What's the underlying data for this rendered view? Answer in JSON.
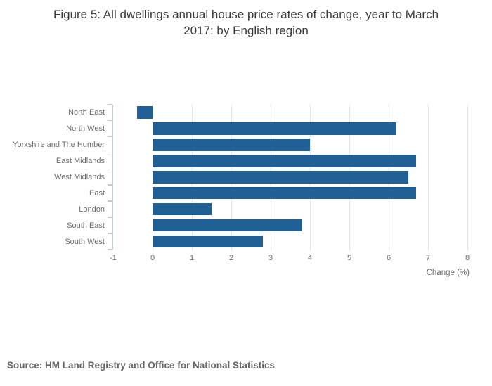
{
  "title": "Figure 5: All dwellings annual house price rates of change, year to March\n2017: by English region",
  "source": "Source: HM Land Registry and Office for National Statistics",
  "colors": {
    "bar": "#206095",
    "gridline": "#e4e4e4",
    "axis_line": "#c3cde2",
    "tick_text": "#6b6b6b",
    "title_text": "#3a3a3a",
    "source_text": "#666666",
    "background": "#ffffff"
  },
  "chart_data": {
    "type": "bar",
    "orientation": "horizontal",
    "title": "Figure 5: All dwellings annual house price rates of change, year to March 2017: by English region",
    "categories": [
      "North East",
      "North West",
      "Yorkshire and The Humber",
      "East Midlands",
      "West Midlands",
      "East",
      "London",
      "South East",
      "South West"
    ],
    "values": [
      -0.4,
      6.2,
      4.0,
      6.7,
      6.5,
      6.7,
      1.5,
      3.8,
      2.8
    ],
    "xlabel": "Change (%)",
    "ylabel": "",
    "xlim": [
      -1,
      8
    ],
    "xticks": [
      -1,
      0,
      1,
      2,
      3,
      4,
      5,
      6,
      7,
      8
    ],
    "grid": true,
    "legend": "none"
  }
}
